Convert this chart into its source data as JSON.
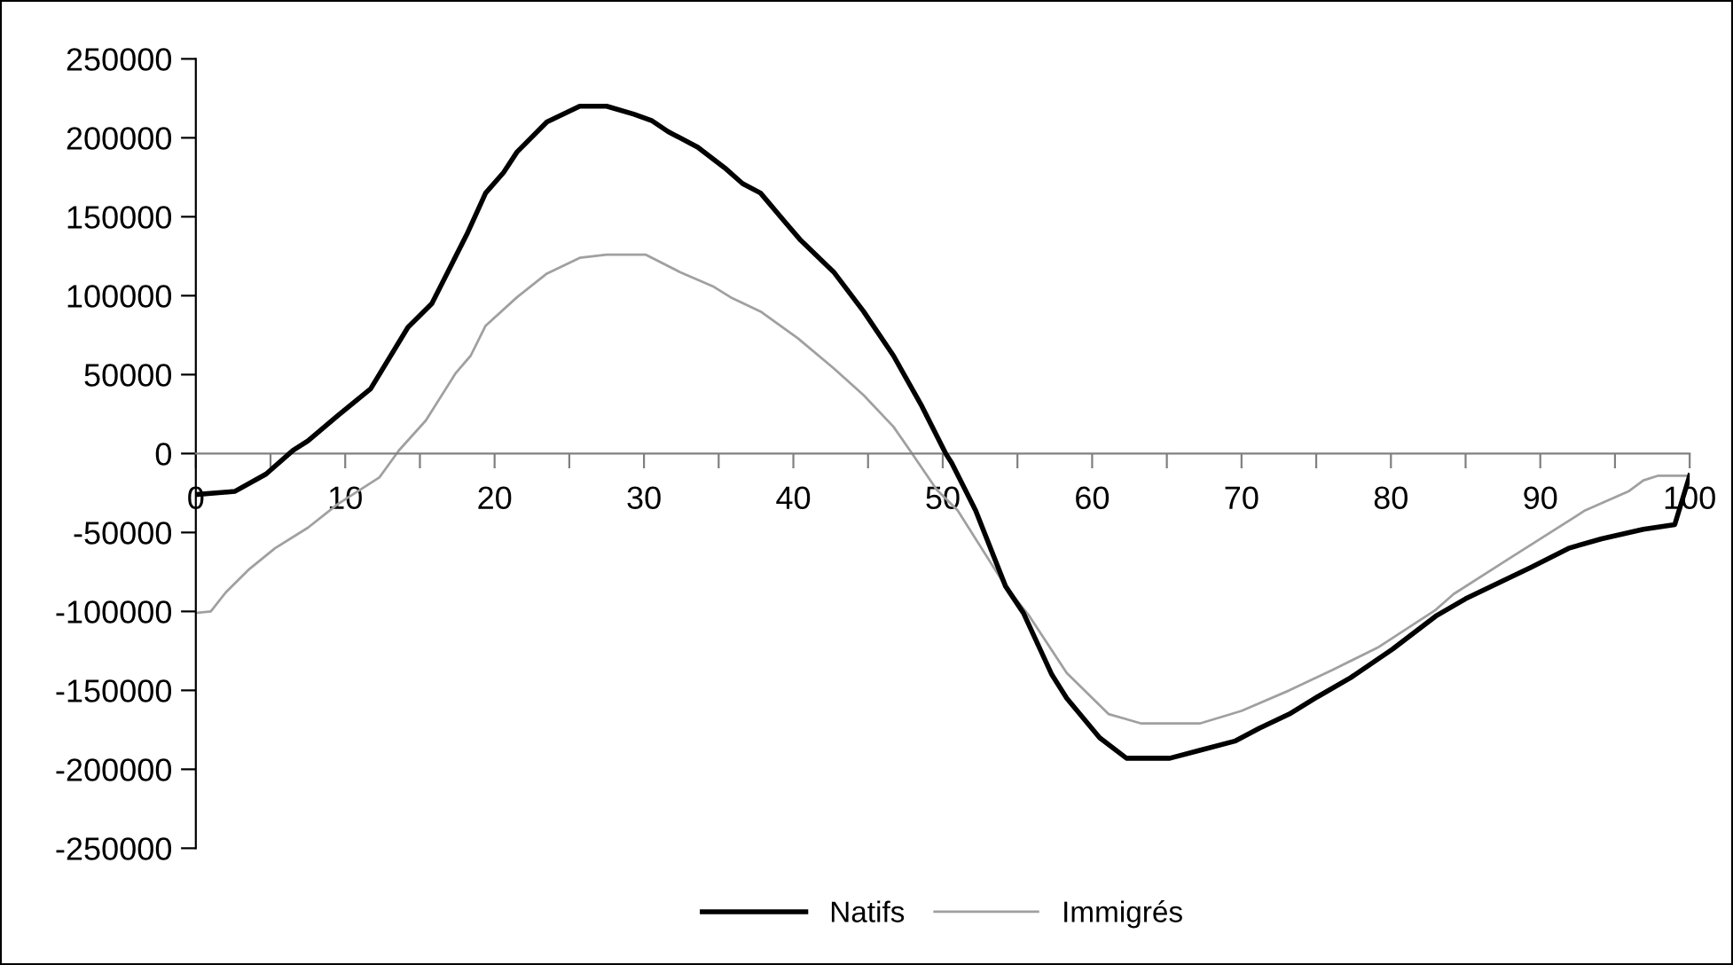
{
  "chart_data": {
    "type": "line",
    "xlim": [
      0,
      100
    ],
    "ylim": [
      -250000,
      250000
    ],
    "xticks": [
      0,
      {
        "value": 5,
        "label": null
      },
      10,
      {
        "value": 15,
        "label": null
      },
      20,
      {
        "value": 25,
        "label": null
      },
      30,
      {
        "value": 35,
        "label": null
      },
      40,
      {
        "value": 45,
        "label": null
      },
      50,
      {
        "value": 55,
        "label": null
      },
      60,
      {
        "value": 65,
        "label": null
      },
      70,
      {
        "value": 75,
        "label": null
      },
      80,
      {
        "value": 85,
        "label": null
      },
      90,
      {
        "value": 95,
        "label": null
      },
      100
    ],
    "yticks": [
      -250000,
      -200000,
      -150000,
      -100000,
      -50000,
      0,
      50000,
      100000,
      150000,
      200000,
      250000
    ],
    "grid": false,
    "legend": "bottom",
    "marker": "none",
    "line_style": "solid",
    "series": [
      {
        "name": "Natifs",
        "color": "#000000",
        "x": [
          0,
          2.6,
          4.7,
          6.5,
          7.5,
          9.5,
          11.7,
          14.2,
          15.8,
          18.2,
          19.4,
          20.6,
          21.5,
          23.5,
          25.7,
          27.5,
          29.3,
          30.5,
          31.6,
          33.6,
          35.4,
          36.6,
          37.8,
          39.5,
          40.5,
          42.7,
          44.7,
          46.7,
          48.6,
          50.2,
          50.6,
          52.2,
          54.2,
          55.4,
          57.3,
          58.3,
          60.5,
          62.3,
          65.2,
          67.2,
          69.6,
          71.2,
          73.2,
          75.1,
          77.3,
          80.1,
          83.0,
          85.0,
          89.4,
          91.9,
          94.1,
          96.9,
          99.0,
          100
        ],
        "values": [
          -26000,
          -24000,
          -13000,
          2000,
          8000,
          24000,
          41000,
          80000,
          95000,
          140000,
          165000,
          178000,
          191000,
          210000,
          220000,
          220000,
          215000,
          211000,
          204000,
          194000,
          181000,
          171000,
          165000,
          146000,
          135000,
          115000,
          90000,
          62000,
          30000,
          0,
          -6000,
          -36000,
          -84000,
          -101000,
          -140000,
          -155000,
          -180000,
          -193000,
          -193000,
          -188000,
          -182000,
          -174000,
          -165000,
          -154000,
          -142000,
          -124000,
          -103000,
          -92000,
          -72000,
          -60000,
          -54000,
          -48000,
          -45000,
          -14000
        ]
      },
      {
        "name": "Immigrés",
        "color": "#a0a0a0",
        "x": [
          0,
          1,
          2,
          3.6,
          5.3,
          7.5,
          9.5,
          12.3,
          13.6,
          15.4,
          17.4,
          18.4,
          19.4,
          21.5,
          23.5,
          25.7,
          27.5,
          30.1,
          32.4,
          34.6,
          35.8,
          37.8,
          40.3,
          42.7,
          44.7,
          46.7,
          47.8,
          49.6,
          51.0,
          54.2,
          55.8,
          58.3,
          61.1,
          63.3,
          67.2,
          70.0,
          73.2,
          76.1,
          79.1,
          83.0,
          84.2,
          88.0,
          93.0,
          95.9,
          96.9,
          97.9,
          100
        ],
        "values": [
          -101000,
          -100000,
          -88000,
          -73000,
          -60000,
          -47000,
          -32000,
          -15000,
          2000,
          21000,
          51000,
          62000,
          81000,
          99000,
          114000,
          124000,
          126000,
          126000,
          115000,
          106000,
          99000,
          90000,
          73000,
          54000,
          37000,
          17000,
          2000,
          -23000,
          -36000,
          -84000,
          -103000,
          -139000,
          -165000,
          -171000,
          -171000,
          -163000,
          -150000,
          -137000,
          -123000,
          -99000,
          -89000,
          -66000,
          -36000,
          -24000,
          -17000,
          -14000,
          -14000
        ]
      }
    ]
  }
}
